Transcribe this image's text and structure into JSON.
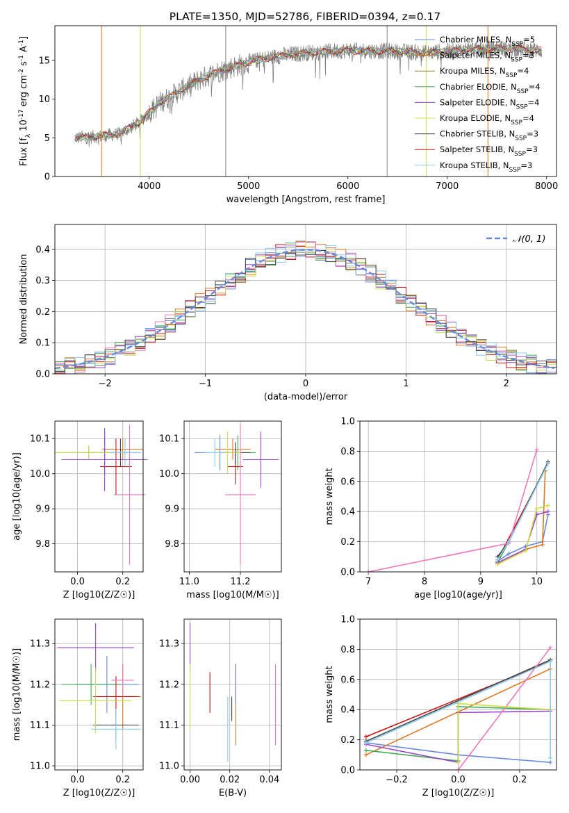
{
  "figure": {
    "title": "PLATE=1350, MJD=52786, FIBERID=0394, z=0.17"
  },
  "colors": [
    "#6688dd",
    "#dd7722",
    "#44aa55",
    "#cc3333",
    "#9944cc",
    "#8b5a3c",
    "#ee77bb",
    "#777777",
    "#ccdd44",
    "#66cccc"
  ],
  "chart_data": [
    {
      "id": "spectrum",
      "type": "line",
      "xlabel": "wavelength [Angstrom, rest frame]",
      "ylabel": "Flux [f_λ 10^-17 erg cm^-2 s^-1 A^-1]",
      "xlim": [
        3050,
        8100
      ],
      "ylim": [
        0,
        19.5
      ],
      "xticks": [
        4000,
        5000,
        6000,
        7000,
        8000
      ],
      "yticks": [
        0,
        5,
        10,
        15
      ],
      "grid": false,
      "legend_position": "top-right",
      "legend": [
        {
          "label": "Chabrier MILES, N_SSP=5",
          "color": "#6688dd"
        },
        {
          "label": "Salpeter MILES, N_SSP=3",
          "color": "#dd7722"
        },
        {
          "label": "Kroupa MILES, N_SSP=4",
          "color": "#9a7b2a"
        },
        {
          "label": "Chabrier ELODIE, N_SSP=4",
          "color": "#44aa55"
        },
        {
          "label": "Salpeter ELODIE, N_SSP=4",
          "color": "#9944cc"
        },
        {
          "label": "Kroupa ELODIE, N_SSP=4",
          "color": "#ccdd44"
        },
        {
          "label": "Chabrier STELIB, N_SSP=3",
          "color": "#333333"
        },
        {
          "label": "Salpeter STELIB, N_SSP=3",
          "color": "#cc1111"
        },
        {
          "label": "Kroupa STELIB, N_SSP=3",
          "color": "#88ccee"
        }
      ],
      "continuum": {
        "x": [
          3250,
          3500,
          3700,
          3900,
          4100,
          4300,
          4500,
          4700,
          5000,
          5300,
          5600,
          6000,
          6400,
          6800,
          7200,
          7600,
          7950
        ],
        "y": [
          5.0,
          5.2,
          5.5,
          7.0,
          9.5,
          11.0,
          12.5,
          13.6,
          14.8,
          15.6,
          16.0,
          16.3,
          16.2,
          16.0,
          16.4,
          16.6,
          16.3
        ]
      },
      "data_color": "#808080",
      "spikes": [
        {
          "x": 3520,
          "color": "#dd7722"
        },
        {
          "x": 3910,
          "color": "#ccdd44"
        },
        {
          "x": 4770,
          "color": "#808080"
        },
        {
          "x": 6395,
          "color": "#808080"
        },
        {
          "x": 6790,
          "color": "#ccdd44"
        },
        {
          "x": 7410,
          "color": "#dd7722"
        }
      ]
    },
    {
      "id": "residuals",
      "type": "histogram",
      "xlabel": "(data-model)/error",
      "ylabel": "Normed distribution",
      "xlim": [
        -2.5,
        2.5
      ],
      "ylim": [
        0,
        0.48
      ],
      "xticks": [
        -2,
        -1,
        0,
        1,
        2
      ],
      "yticks": [
        0.0,
        0.1,
        0.2,
        0.3,
        0.4
      ],
      "grid": true,
      "legend_position": "top-right",
      "reference_curve": {
        "label": "𝒩(0, 1)",
        "color": "#6688dd",
        "mean": 0,
        "sigma": 1
      },
      "bin_width": 0.1,
      "series_colors": [
        "#6688dd",
        "#dd7722",
        "#44aa55",
        "#cc1111",
        "#9944cc",
        "#777777",
        "#ee77bb",
        "#ccdd44",
        "#88ccee",
        "#444444"
      ]
    },
    {
      "id": "z-age",
      "type": "errorbar",
      "xlabel": "Z [log10(Z/Z☉)]",
      "ylabel": "age  [log10(age/yr)]",
      "xlim": [
        -0.1,
        0.29
      ],
      "ylim": [
        9.72,
        10.15
      ],
      "xticks": [
        0.0,
        0.2
      ],
      "yticks": [
        9.8,
        9.9,
        10.0,
        10.1
      ],
      "grid": true,
      "points": [
        {
          "x": 0.12,
          "y": 10.06,
          "xerr": 0.16,
          "yerr": 0.06,
          "color": "#6688dd"
        },
        {
          "x": 0.2,
          "y": 10.07,
          "xerr": 0.09,
          "yerr": 0.03,
          "color": "#dd7722"
        },
        {
          "x": 0.05,
          "y": 10.06,
          "xerr": 0.14,
          "yerr": 0.02,
          "color": "#44aa55"
        },
        {
          "x": 0.17,
          "y": 10.02,
          "xerr": 0.07,
          "yerr": 0.08,
          "color": "#cc1111"
        },
        {
          "x": 0.12,
          "y": 10.04,
          "xerr": 0.19,
          "yerr": 0.09,
          "color": "#9944cc"
        },
        {
          "x": 0.19,
          "y": 10.06,
          "xerr": 0.09,
          "yerr": 0.04,
          "color": "#444444"
        },
        {
          "x": 0.23,
          "y": 9.94,
          "xerr": 0.07,
          "yerr": 0.2,
          "color": "#ee77bb"
        },
        {
          "x": 0.05,
          "y": 10.06,
          "xerr": 0.15,
          "yerr": 0.02,
          "color": "#ccdd44"
        },
        {
          "x": 0.21,
          "y": 10.06,
          "xerr": 0.07,
          "yerr": 0.04,
          "color": "#88ccee"
        }
      ]
    },
    {
      "id": "mass-age",
      "type": "errorbar",
      "xlabel": "mass [log10(M/M☉)]",
      "ylabel": "",
      "xlim": [
        10.98,
        11.36
      ],
      "ylim": [
        9.72,
        10.15
      ],
      "xticks": [
        11.0,
        11.2
      ],
      "yticks": [
        9.8,
        9.9,
        10.0,
        10.1
      ],
      "grid": true,
      "points": [
        {
          "x": 11.12,
          "y": 10.06,
          "xerr": 0.1,
          "yerr": 0.05,
          "color": "#6688dd"
        },
        {
          "x": 11.17,
          "y": 10.07,
          "xerr": 0.07,
          "yerr": 0.03,
          "color": "#dd7722"
        },
        {
          "x": 11.19,
          "y": 10.06,
          "xerr": 0.07,
          "yerr": 0.05,
          "color": "#44aa55"
        },
        {
          "x": 11.18,
          "y": 10.02,
          "xerr": 0.03,
          "yerr": 0.05,
          "color": "#cc1111"
        },
        {
          "x": 11.28,
          "y": 10.04,
          "xerr": 0.07,
          "yerr": 0.08,
          "color": "#9944cc"
        },
        {
          "x": 11.18,
          "y": 10.06,
          "xerr": 0.06,
          "yerr": 0.03,
          "color": "#444444"
        },
        {
          "x": 11.2,
          "y": 9.94,
          "xerr": 0.06,
          "yerr": 0.2,
          "color": "#ee77bb"
        },
        {
          "x": 11.15,
          "y": 10.06,
          "xerr": 0.05,
          "yerr": 0.06,
          "color": "#ccdd44"
        },
        {
          "x": 11.1,
          "y": 10.06,
          "xerr": 0.04,
          "yerr": 0.04,
          "color": "#88ccee"
        }
      ]
    },
    {
      "id": "age-weight",
      "type": "line",
      "xlabel": "age  [log10(age/yr)]",
      "ylabel": "mass weight",
      "xlim": [
        6.85,
        10.35
      ],
      "ylim": [
        0.0,
        1.0
      ],
      "xticks": [
        7,
        8,
        9,
        10
      ],
      "yticks": [
        0.0,
        0.2,
        0.4,
        0.6,
        0.8,
        1.0
      ],
      "grid": true,
      "series": [
        {
          "color": "#6688dd",
          "x": [
            9.3,
            9.5,
            9.8,
            10.1,
            10.2
          ],
          "y": [
            0.07,
            0.12,
            0.17,
            0.2,
            0.38
          ]
        },
        {
          "color": "#dd7722",
          "x": [
            9.3,
            9.8,
            10.1,
            10.15
          ],
          "y": [
            0.06,
            0.15,
            0.18,
            0.67
          ]
        },
        {
          "color": "#44aa55",
          "x": [
            9.3,
            9.5,
            10.2
          ],
          "y": [
            0.06,
            0.2,
            0.72
          ]
        },
        {
          "color": "#cc1111",
          "x": [
            9.3,
            10.2
          ],
          "y": [
            0.08,
            0.72
          ]
        },
        {
          "color": "#9944cc",
          "x": [
            9.3,
            9.8,
            10.0,
            10.2
          ],
          "y": [
            0.06,
            0.15,
            0.38,
            0.4
          ]
        },
        {
          "color": "#444444",
          "x": [
            9.3,
            9.5,
            10.2
          ],
          "y": [
            0.1,
            0.2,
            0.73
          ]
        },
        {
          "color": "#ee77bb",
          "x": [
            7.0,
            9.5,
            10.0
          ],
          "y": [
            0.0,
            0.19,
            0.81
          ]
        },
        {
          "color": "#ccdd44",
          "x": [
            9.3,
            9.8,
            10.0,
            10.2
          ],
          "y": [
            0.05,
            0.14,
            0.42,
            0.44
          ]
        },
        {
          "color": "#88ccee",
          "x": [
            9.3,
            9.5,
            10.2
          ],
          "y": [
            0.08,
            0.2,
            0.72
          ]
        }
      ]
    },
    {
      "id": "z-mass",
      "type": "errorbar",
      "xlabel": "Z [log10(Z/Z☉)]",
      "ylabel": "mass [log10(M/M☉)]",
      "xlim": [
        -0.1,
        0.29
      ],
      "ylim": [
        10.99,
        11.36
      ],
      "xticks": [
        0.0,
        0.2
      ],
      "yticks": [
        11.0,
        11.1,
        11.2,
        11.3
      ],
      "grid": true,
      "points": [
        {
          "x": 0.13,
          "y": 11.2,
          "xerr": 0.14,
          "yerr": 0.07,
          "color": "#6688dd"
        },
        {
          "x": 0.2,
          "y": 11.17,
          "xerr": 0.08,
          "yerr": 0.08,
          "color": "#dd7722"
        },
        {
          "x": 0.06,
          "y": 11.2,
          "xerr": 0.13,
          "yerr": 0.05,
          "color": "#44aa55"
        },
        {
          "x": 0.17,
          "y": 11.17,
          "xerr": 0.1,
          "yerr": 0.05,
          "color": "#cc1111"
        },
        {
          "x": 0.08,
          "y": 11.29,
          "xerr": 0.17,
          "yerr": 0.06,
          "color": "#9944cc"
        },
        {
          "x": 0.17,
          "y": 11.1,
          "xerr": 0.1,
          "yerr": 0.04,
          "color": "#444444"
        },
        {
          "x": 0.2,
          "y": 11.21,
          "xerr": 0.05,
          "yerr": 0.04,
          "color": "#ee77bb"
        },
        {
          "x": 0.08,
          "y": 11.16,
          "xerr": 0.16,
          "yerr": 0.08,
          "color": "#ccdd44"
        },
        {
          "x": 0.17,
          "y": 11.09,
          "xerr": 0.11,
          "yerr": 0.05,
          "color": "#88ccee"
        }
      ]
    },
    {
      "id": "ebv-mass",
      "type": "errorbar",
      "xlabel": "E(B-V)",
      "ylabel": "",
      "xlim": [
        -0.003,
        0.046
      ],
      "ylim": [
        10.99,
        11.36
      ],
      "xticks": [
        0.0,
        0.02,
        0.04
      ],
      "yticks": [
        11.0,
        11.1,
        11.2,
        11.3
      ],
      "grid": true,
      "points": [
        {
          "x": 0.0,
          "y": 11.29,
          "xerr": 0,
          "yerr": 0.06,
          "color": "#9944cc"
        },
        {
          "x": 0.0,
          "y": 11.17,
          "xerr": 0,
          "yerr": 0.08,
          "color": "#ccdd44"
        },
        {
          "x": 0.01,
          "y": 11.18,
          "xerr": 0,
          "yerr": 0.05,
          "color": "#cc1111"
        },
        {
          "x": 0.019,
          "y": 11.09,
          "xerr": 0,
          "yerr": 0.08,
          "color": "#88ccee"
        },
        {
          "x": 0.021,
          "y": 11.14,
          "xerr": 0,
          "yerr": 0.03,
          "color": "#444444"
        },
        {
          "x": 0.023,
          "y": 11.15,
          "xerr": 0,
          "yerr": 0.1,
          "color": "#dd7722"
        },
        {
          "x": 0.023,
          "y": 11.2,
          "xerr": 0,
          "yerr": 0.05,
          "color": "#6688dd"
        },
        {
          "x": 0.043,
          "y": 11.15,
          "xerr": 0,
          "yerr": 0.1,
          "color": "#ee77bb"
        }
      ]
    },
    {
      "id": "z-weight",
      "type": "line",
      "xlabel": "Z [log10(Z/Z☉)]",
      "ylabel": "mass weight",
      "xlim": [
        -0.32,
        0.32
      ],
      "ylim": [
        0.0,
        1.0
      ],
      "xticks": [
        -0.2,
        0.0,
        0.2
      ],
      "yticks": [
        0.0,
        0.2,
        0.4,
        0.6,
        0.8,
        1.0
      ],
      "grid": true,
      "series": [
        {
          "color": "#6688dd",
          "x": [
            -0.3,
            0.0,
            0.3
          ],
          "y": [
            0.18,
            0.1,
            0.05
          ]
        },
        {
          "color": "#dd7722",
          "x": [
            -0.3,
            0.3
          ],
          "y": [
            0.1,
            0.67
          ]
        },
        {
          "color": "#44aa55",
          "x": [
            -0.3,
            0.0,
            0.0,
            0.3
          ],
          "y": [
            0.13,
            0.06,
            0.42,
            0.4
          ]
        },
        {
          "color": "#cc1111",
          "x": [
            -0.3,
            0.3
          ],
          "y": [
            0.22,
            0.72
          ]
        },
        {
          "color": "#9944cc",
          "x": [
            -0.3,
            0.0,
            0.0,
            0.3
          ],
          "y": [
            0.17,
            0.05,
            0.38,
            0.39
          ]
        },
        {
          "color": "#444444",
          "x": [
            -0.3,
            0.3
          ],
          "y": [
            0.19,
            0.73
          ]
        },
        {
          "color": "#ee77bb",
          "x": [
            0.0,
            0.3
          ],
          "y": [
            0.0,
            0.81
          ]
        },
        {
          "color": "#ccdd44",
          "x": [
            0.0,
            0.0,
            0.3
          ],
          "y": [
            0.05,
            0.44,
            0.4
          ]
        },
        {
          "color": "#88ccee",
          "x": [
            -0.3,
            0.3,
            0.3
          ],
          "y": [
            0.18,
            0.72,
            0.08
          ]
        }
      ]
    }
  ]
}
